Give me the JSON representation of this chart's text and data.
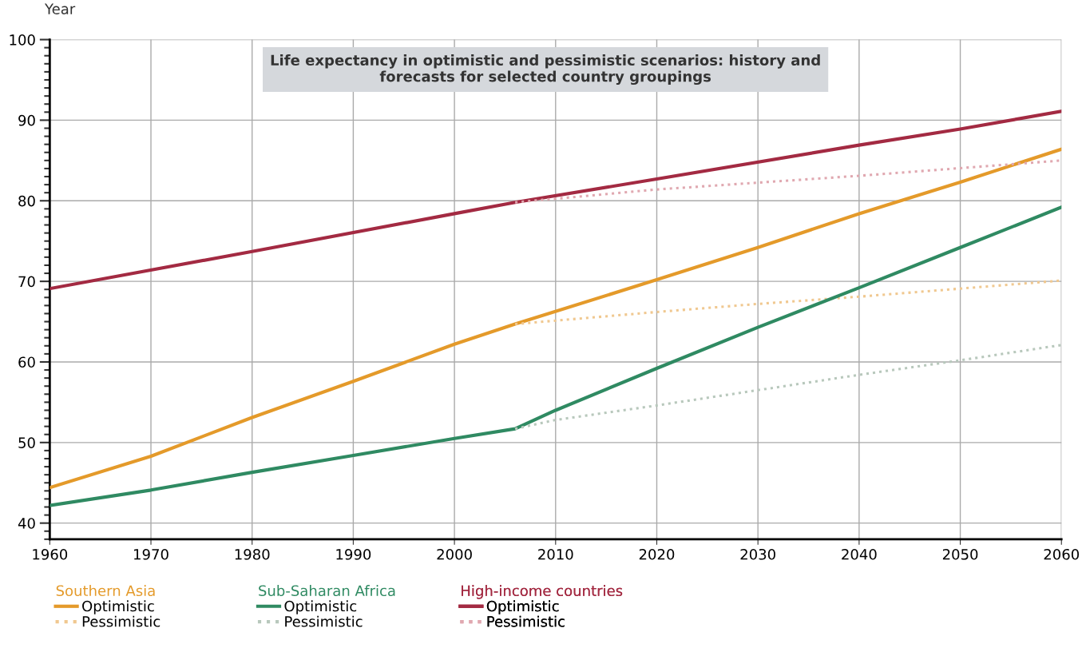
{
  "chart_data": {
    "type": "line",
    "title": "Life expectancy in optimistic and pessimistic scenarios: history and\nforecasts for selected country groupings",
    "ylabel": "Year",
    "xlim": [
      1960,
      2060
    ],
    "xticks": [
      1960,
      1970,
      1980,
      1990,
      2000,
      2010,
      2020,
      2030,
      2040,
      2050,
      2060
    ],
    "annotations": [
      "Southern Asia",
      "Sub-Saharan Africa",
      "High-income countries"
    ],
    "ylim": [
      38,
      100
    ],
    "yticks": [
      40,
      50,
      60,
      70,
      80,
      90,
      100
    ],
    "grid": true,
    "legend": "bottom",
    "marker": "none",
    "series": [
      {
        "name": "Optimistic",
        "color": "#e49a2a",
        "line_style": "solid",
        "x": [
          1960,
          1970,
          1980,
          1990,
          2000,
          2006,
          2020,
          2030,
          2040,
          2050,
          2060
        ],
        "values": [
          44.4,
          48.3,
          53.1,
          57.6,
          62.2,
          64.7,
          70.2,
          74.2,
          78.4,
          82.3,
          86.4
        ]
      },
      {
        "name": "Pessimistic",
        "color": "#f0c890",
        "line_style": "dotted",
        "x": [
          2006,
          2020,
          2030,
          2040,
          2050,
          2060
        ],
        "values": [
          64.7,
          66.2,
          67.2,
          68.1,
          69.1,
          70.1
        ]
      },
      {
        "name": "Optimistic",
        "color": "#2f8a62",
        "line_style": "solid",
        "x": [
          1960,
          1970,
          1980,
          1990,
          2000,
          2006,
          2010,
          2020,
          2030,
          2040,
          2050,
          2060
        ],
        "values": [
          42.2,
          44.1,
          46.3,
          48.4,
          50.5,
          51.7,
          54.0,
          59.2,
          64.3,
          69.2,
          74.2,
          79.2
        ]
      },
      {
        "name": "Pessimistic",
        "color": "#b8c8bc",
        "line_style": "dotted",
        "x": [
          2006,
          2010,
          2020,
          2030,
          2040,
          2050,
          2060
        ],
        "values": [
          51.7,
          52.8,
          54.6,
          56.5,
          58.4,
          60.2,
          62.1
        ]
      },
      {
        "name": "Optimistic",
        "color": "#a32a42",
        "line_style": "solid",
        "x": [
          1960,
          1980,
          2000,
          2006,
          2020,
          2040,
          2050,
          2060
        ],
        "values": [
          69.1,
          73.7,
          78.4,
          79.8,
          82.7,
          86.9,
          88.9,
          91.1
        ]
      },
      {
        "name": "Pessimistic",
        "color": "#e0a8b0",
        "line_style": "dotted",
        "x": [
          2006,
          2020,
          2040,
          2060
        ],
        "values": [
          79.8,
          81.4,
          83.1,
          85.0
        ]
      }
    ]
  }
}
